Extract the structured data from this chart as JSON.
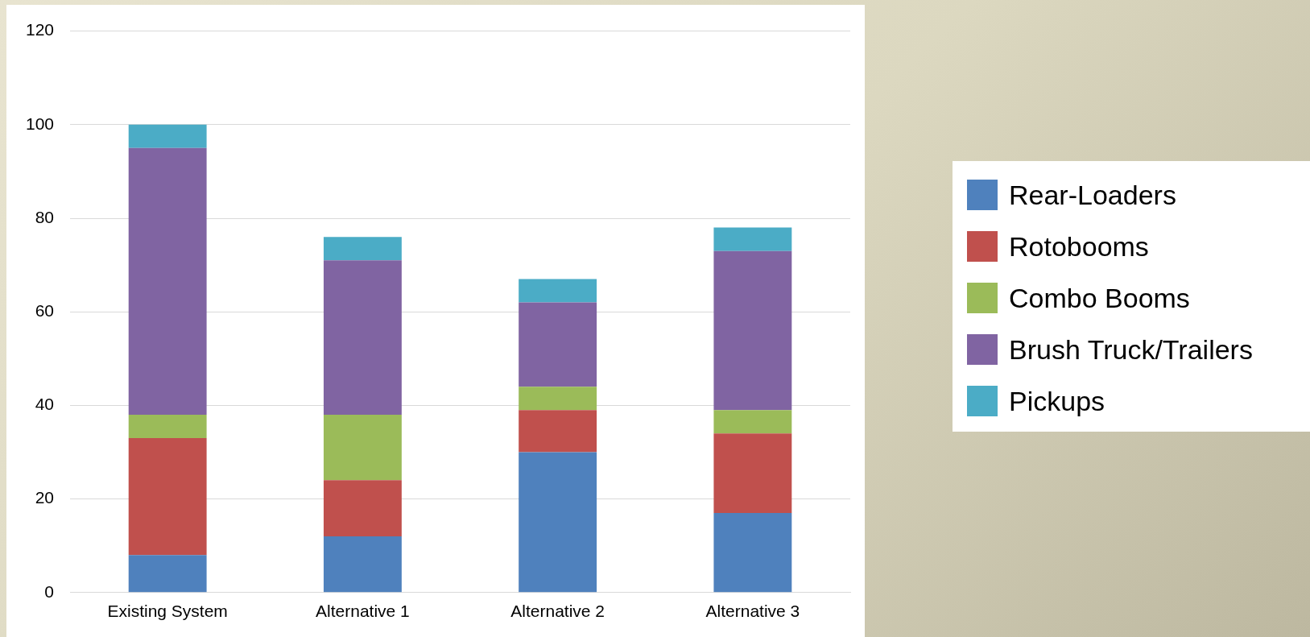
{
  "chart_data": {
    "type": "bar",
    "stacked": true,
    "categories": [
      "Existing System",
      "Alternative 1",
      "Alternative 2",
      "Alternative 3"
    ],
    "series": [
      {
        "name": "Rear-Loaders",
        "color": "#4f81bd",
        "values": [
          8,
          12,
          30,
          17
        ]
      },
      {
        "name": "Rotobooms",
        "color": "#c0504d",
        "values": [
          25,
          12,
          9,
          17
        ]
      },
      {
        "name": "Combo Booms",
        "color": "#9bbb59",
        "values": [
          5,
          14,
          5,
          5
        ]
      },
      {
        "name": "Brush Truck/Trailers",
        "color": "#8064a2",
        "values": [
          57,
          33,
          18,
          34
        ]
      },
      {
        "name": "Pickups",
        "color": "#4bacc6",
        "values": [
          5,
          5,
          5,
          5
        ]
      }
    ],
    "ylim": [
      0,
      120
    ],
    "yticks": [
      0,
      20,
      40,
      60,
      80,
      100,
      120
    ],
    "grid": "y",
    "legend": "right"
  }
}
